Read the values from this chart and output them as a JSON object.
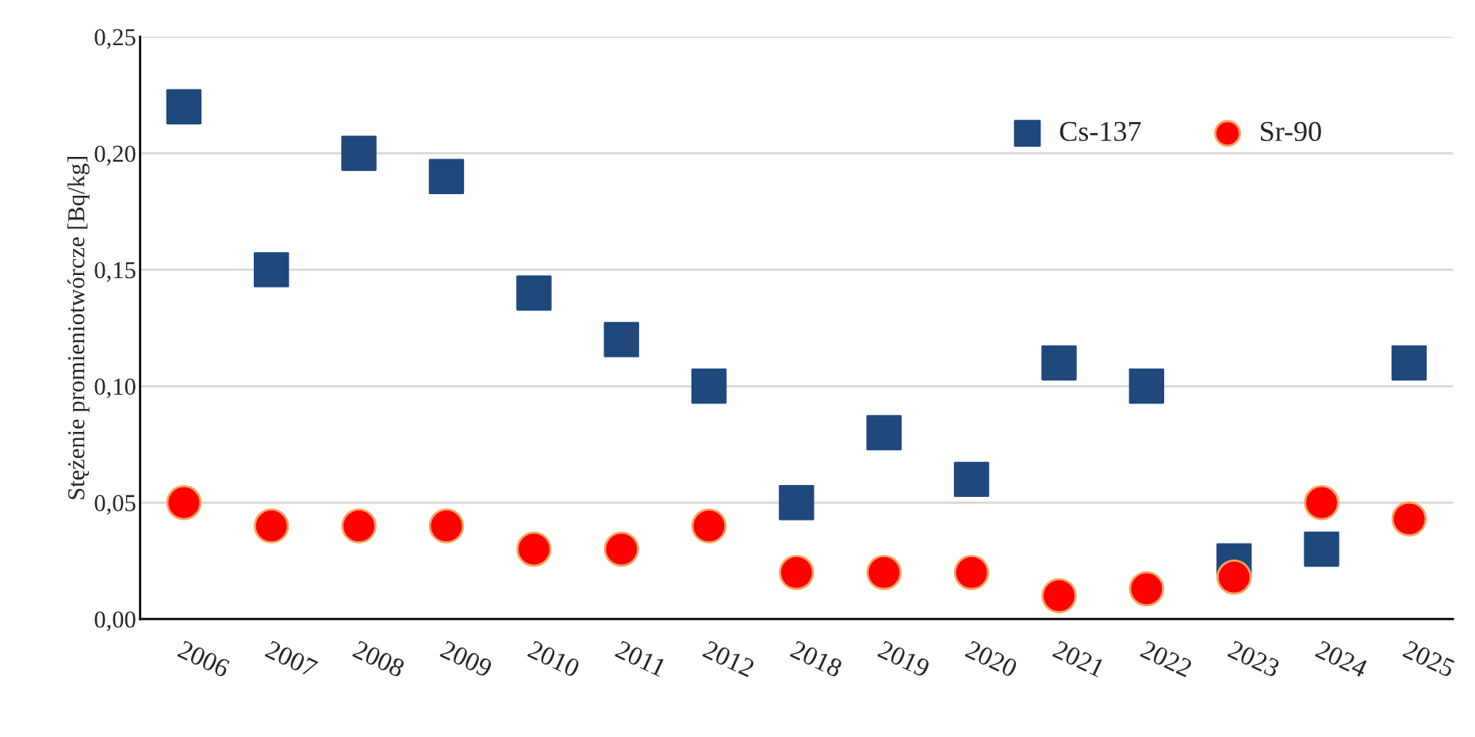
{
  "chart_data": {
    "type": "scatter",
    "ylabel": "Stężenie promieniotwórcze [Bq/kg]",
    "categories": [
      "2006",
      "2007",
      "2008",
      "2009",
      "2010",
      "2011",
      "2012",
      "2018",
      "2019",
      "2020",
      "2021",
      "2022",
      "2023",
      "2024",
      "2025"
    ],
    "series": [
      {
        "name": "Cs-137",
        "color": "#1f497d",
        "marker": "square",
        "values": [
          0.22,
          0.15,
          0.2,
          0.19,
          0.14,
          0.12,
          0.1,
          0.05,
          0.08,
          0.06,
          0.11,
          0.1,
          0.025,
          0.03,
          0.11
        ]
      },
      {
        "name": "Sr-90",
        "color": "#ff0000",
        "marker": "circle",
        "values": [
          0.05,
          0.04,
          0.04,
          0.04,
          0.03,
          0.03,
          0.04,
          0.02,
          0.02,
          0.02,
          0.01,
          0.013,
          0.018,
          0.05,
          0.043
        ]
      }
    ],
    "ylim": [
      0,
      0.25
    ],
    "yticks": [
      {
        "value": 0,
        "label": "0,00"
      },
      {
        "value": 0.05,
        "label": "0,05"
      },
      {
        "value": 0.1,
        "label": "0,10"
      },
      {
        "value": 0.15,
        "label": "0,15"
      },
      {
        "value": 0.2,
        "label": "0,20"
      },
      {
        "value": 0.25,
        "label": "0,25"
      }
    ],
    "grid": "y",
    "legend": "top right"
  }
}
